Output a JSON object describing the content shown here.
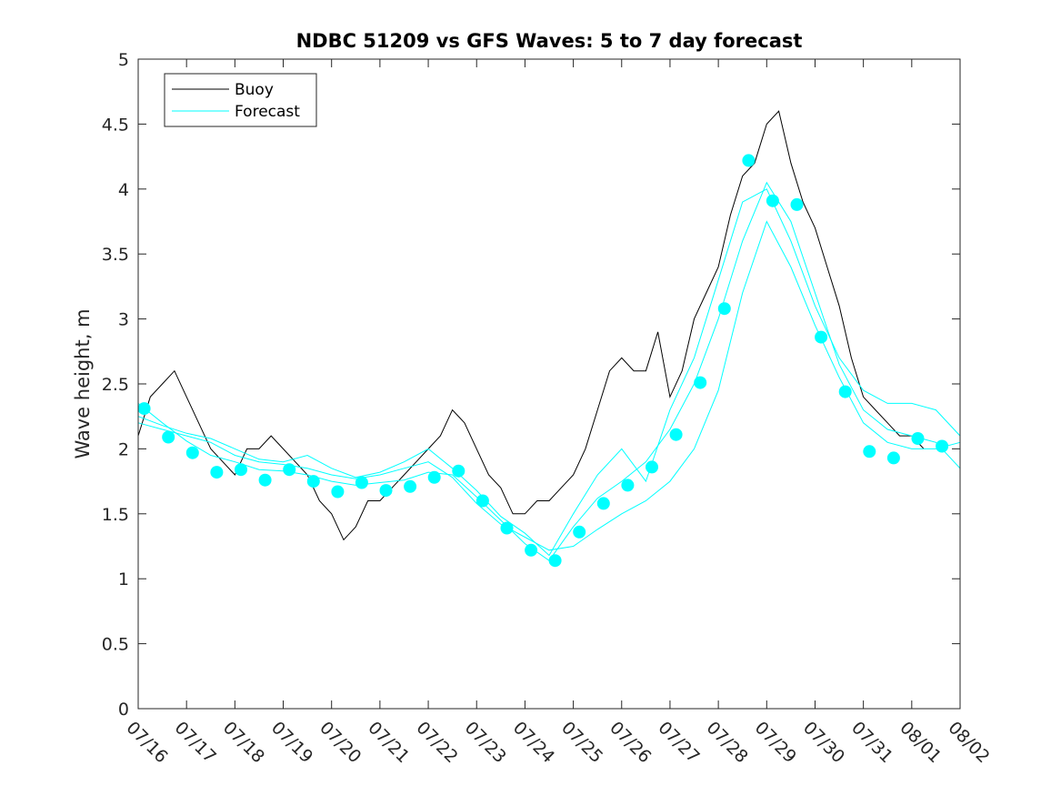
{
  "chart_data": {
    "type": "line",
    "title": "NDBC 51209 vs GFS Waves: 5 to 7 day forecast",
    "xlabel": "",
    "ylabel": "Wave height, m",
    "xlim": [
      "07/16",
      "08/02"
    ],
    "ylim": [
      0,
      5
    ],
    "x_ticks": [
      "07/16",
      "07/17",
      "07/18",
      "07/19",
      "07/20",
      "07/21",
      "07/22",
      "07/23",
      "07/24",
      "07/25",
      "07/26",
      "07/27",
      "07/28",
      "07/29",
      "07/30",
      "07/31",
      "08/01",
      "08/02"
    ],
    "y_ticks": [
      "0",
      "0.5",
      "1",
      "1.5",
      "2",
      "2.5",
      "3",
      "3.5",
      "4",
      "4.5",
      "5"
    ],
    "grid": false,
    "legend": {
      "position": "top-left",
      "entries": [
        "Buoy",
        "Forecast"
      ]
    },
    "colors": {
      "buoy": "#000000",
      "forecast": "#00ffff",
      "axis": "#262626"
    },
    "buoy_series": {
      "name": "Buoy",
      "x": [
        "07/16 00:00",
        "07/16 06:00",
        "07/16 12:00",
        "07/16 18:00",
        "07/17 00:00",
        "07/17 06:00",
        "07/17 12:00",
        "07/17 18:00",
        "07/18 00:00",
        "07/18 06:00",
        "07/18 12:00",
        "07/18 18:00",
        "07/19 00:00",
        "07/19 06:00",
        "07/19 12:00",
        "07/19 18:00",
        "07/20 00:00",
        "07/20 06:00",
        "07/20 12:00",
        "07/20 18:00",
        "07/21 00:00",
        "07/21 06:00",
        "07/21 12:00",
        "07/21 18:00",
        "07/22 00:00",
        "07/22 06:00",
        "07/22 12:00",
        "07/22 18:00",
        "07/23 00:00",
        "07/23 06:00",
        "07/23 12:00",
        "07/23 18:00",
        "07/24 00:00",
        "07/24 06:00",
        "07/24 12:00",
        "07/24 18:00",
        "07/25 00:00",
        "07/25 06:00",
        "07/25 12:00",
        "07/25 18:00",
        "07/26 00:00",
        "07/26 06:00",
        "07/26 12:00",
        "07/26 18:00",
        "07/27 00:00",
        "07/27 06:00",
        "07/27 12:00",
        "07/27 18:00",
        "07/28 00:00",
        "07/28 06:00",
        "07/28 12:00",
        "07/28 18:00",
        "07/29 00:00",
        "07/29 06:00",
        "07/29 12:00",
        "07/29 18:00",
        "07/30 00:00",
        "07/30 06:00",
        "07/30 12:00",
        "07/30 18:00",
        "07/31 00:00",
        "07/31 06:00",
        "07/31 12:00",
        "07/31 18:00",
        "08/01 00:00",
        "08/01 06:00"
      ],
      "values": [
        2.1,
        2.4,
        2.5,
        2.6,
        2.4,
        2.2,
        2.0,
        1.9,
        1.8,
        2.0,
        2.0,
        2.1,
        2.0,
        1.9,
        1.8,
        1.6,
        1.5,
        1.3,
        1.4,
        1.6,
        1.6,
        1.7,
        1.8,
        1.9,
        2.0,
        2.1,
        2.3,
        2.2,
        2.0,
        1.8,
        1.7,
        1.5,
        1.5,
        1.6,
        1.6,
        1.7,
        1.8,
        2.0,
        2.3,
        2.6,
        2.7,
        2.6,
        2.6,
        2.9,
        2.4,
        2.6,
        3.0,
        3.2,
        3.4,
        3.8,
        4.1,
        4.2,
        4.5,
        4.6,
        4.2,
        3.9,
        3.7,
        3.4,
        3.1,
        2.7,
        2.4,
        2.3,
        2.2,
        2.1,
        2.1,
        2.0
      ]
    },
    "forecast_markers": {
      "x": [
        "07/16 03:00",
        "07/16 15:00",
        "07/17 03:00",
        "07/17 15:00",
        "07/18 03:00",
        "07/18 15:00",
        "07/19 03:00",
        "07/19 15:00",
        "07/20 03:00",
        "07/20 15:00",
        "07/21 03:00",
        "07/21 15:00",
        "07/22 03:00",
        "07/22 15:00",
        "07/23 03:00",
        "07/23 15:00",
        "07/24 03:00",
        "07/24 15:00",
        "07/25 03:00",
        "07/25 15:00",
        "07/26 03:00",
        "07/26 15:00",
        "07/27 03:00",
        "07/27 15:00",
        "07/28 03:00",
        "07/28 15:00",
        "07/29 03:00",
        "07/29 15:00",
        "07/30 03:00",
        "07/30 15:00",
        "07/31 03:00",
        "07/31 15:00",
        "08/01 03:00",
        "08/01 15:00"
      ],
      "values": [
        2.31,
        2.09,
        1.97,
        1.82,
        1.84,
        1.76,
        1.84,
        1.75,
        1.67,
        1.74,
        1.68,
        1.71,
        1.78,
        1.83,
        1.6,
        1.39,
        1.22,
        1.14,
        1.36,
        1.58,
        1.72,
        1.86,
        2.11,
        2.51,
        3.08,
        4.22,
        3.91,
        3.88,
        2.86,
        2.44,
        1.98,
        1.93,
        2.08,
        2.02
      ]
    },
    "forecast_series": [
      {
        "x": [
          "07/16 00:00",
          "07/16 12:00",
          "07/17 00:00",
          "07/17 12:00",
          "07/18 00:00",
          "07/18 12:00",
          "07/19 00:00",
          "07/19 12:00",
          "07/20 00:00",
          "07/20 12:00",
          "07/21 00:00",
          "07/21 12:00",
          "07/22 00:00",
          "07/22 12:00",
          "07/23 00:00",
          "07/23 12:00",
          "07/24 00:00",
          "07/24 12:00",
          "07/25 00:00",
          "07/25 12:00",
          "07/26 00:00",
          "07/26 12:00",
          "07/27 00:00",
          "07/27 12:00",
          "07/28 00:00",
          "07/28 12:00",
          "07/29 00:00",
          "07/29 12:00",
          "07/30 00:00",
          "07/30 12:00",
          "07/31 00:00",
          "07/31 12:00",
          "08/01 00:00",
          "08/01 12:00",
          "08/02 00:00"
        ],
        "values": [
          2.35,
          2.2,
          2.06,
          1.95,
          1.9,
          1.84,
          1.83,
          1.8,
          1.75,
          1.72,
          1.74,
          1.76,
          1.82,
          1.8,
          1.63,
          1.45,
          1.27,
          1.14,
          1.4,
          1.62,
          1.75,
          1.9,
          2.15,
          2.5,
          3.0,
          3.6,
          4.05,
          3.75,
          3.2,
          2.65,
          2.3,
          2.15,
          2.1,
          2.05,
          1.85
        ]
      },
      {
        "x": [
          "07/16 00:00",
          "07/16 12:00",
          "07/17 00:00",
          "07/17 12:00",
          "07/18 00:00",
          "07/18 12:00",
          "07/19 00:00",
          "07/19 12:00",
          "07/20 00:00",
          "07/20 12:00",
          "07/21 00:00",
          "07/21 12:00",
          "07/22 00:00",
          "07/22 12:00",
          "07/23 00:00",
          "07/23 12:00",
          "07/24 00:00",
          "07/24 12:00",
          "07/25 00:00",
          "07/25 12:00",
          "07/26 00:00",
          "07/26 12:00",
          "07/27 00:00",
          "07/27 12:00",
          "07/28 00:00",
          "07/28 12:00",
          "07/29 00:00",
          "07/29 12:00",
          "07/30 00:00",
          "07/30 12:00",
          "07/31 00:00",
          "07/31 12:00",
          "08/01 00:00",
          "08/01 12:00",
          "08/02 00:00"
        ],
        "values": [
          2.2,
          2.15,
          2.1,
          2.05,
          1.95,
          1.9,
          1.88,
          1.85,
          1.8,
          1.77,
          1.8,
          1.85,
          1.9,
          1.78,
          1.58,
          1.42,
          1.32,
          1.22,
          1.25,
          1.38,
          1.5,
          1.6,
          1.75,
          2.0,
          2.45,
          3.2,
          3.75,
          3.4,
          2.95,
          2.55,
          2.2,
          2.05,
          2.0,
          2.0,
          2.05
        ]
      },
      {
        "x": [
          "07/16 00:00",
          "07/16 12:00",
          "07/17 00:00",
          "07/17 12:00",
          "07/18 00:00",
          "07/18 12:00",
          "07/19 00:00",
          "07/19 12:00",
          "07/20 00:00",
          "07/20 12:00",
          "07/21 00:00",
          "07/21 12:00",
          "07/22 00:00",
          "07/22 12:00",
          "07/23 00:00",
          "07/23 12:00",
          "07/24 00:00",
          "07/24 12:00",
          "07/25 00:00",
          "07/25 12:00",
          "07/26 00:00",
          "07/26 12:00",
          "07/27 00:00",
          "07/27 12:00",
          "07/28 00:00",
          "07/28 12:00",
          "07/29 00:00",
          "07/29 12:00",
          "07/30 00:00",
          "07/30 12:00",
          "07/31 00:00",
          "07/31 12:00",
          "08/01 00:00",
          "08/01 12:00",
          "08/02 00:00"
        ],
        "values": [
          2.25,
          2.18,
          2.12,
          2.08,
          2.0,
          1.92,
          1.9,
          1.95,
          1.85,
          1.78,
          1.82,
          1.9,
          2.0,
          1.85,
          1.68,
          1.48,
          1.35,
          1.18,
          1.5,
          1.8,
          2.0,
          1.75,
          2.3,
          2.7,
          3.3,
          3.9,
          4.0,
          3.6,
          3.1,
          2.7,
          2.45,
          2.35,
          2.35,
          2.3,
          2.1
        ]
      }
    ]
  }
}
